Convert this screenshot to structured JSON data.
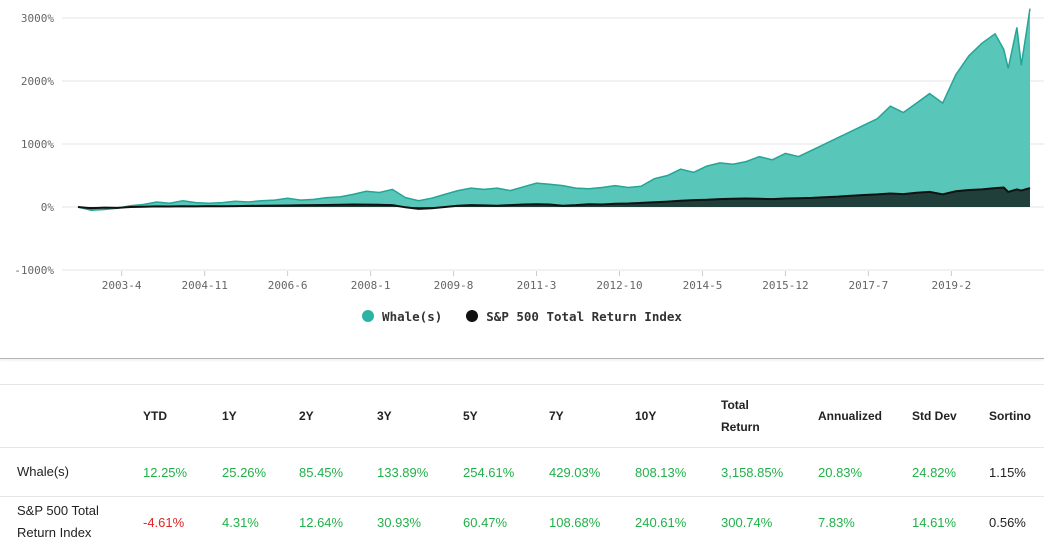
{
  "chart_data": {
    "type": "area",
    "title": "",
    "xlabel": "",
    "ylabel": "",
    "ylim": [
      -1000,
      3200
    ],
    "y_ticks": [
      "3000%",
      "2000%",
      "1000%",
      "0%",
      "-1000%"
    ],
    "y_tick_values": [
      3000,
      2000,
      1000,
      0,
      -1000
    ],
    "x_ticks": [
      "2003-4",
      "2004-11",
      "2006-6",
      "2008-1",
      "2009-8",
      "2011-3",
      "2012-10",
      "2014-5",
      "2015-12",
      "2017-7",
      "2019-2"
    ],
    "x_range": [
      "2002-6",
      "2020-8"
    ],
    "grid": "horizontal",
    "legend_position": "bottom-center",
    "series": [
      {
        "name": "Whale(s)",
        "color": "#24a596",
        "x": [
          "2002-6",
          "2002-9",
          "2002-12",
          "2003-3",
          "2003-6",
          "2003-9",
          "2003-12",
          "2004-3",
          "2004-6",
          "2004-9",
          "2004-12",
          "2005-3",
          "2005-6",
          "2005-9",
          "2005-12",
          "2006-3",
          "2006-6",
          "2006-9",
          "2006-12",
          "2007-3",
          "2007-6",
          "2007-9",
          "2007-12",
          "2008-3",
          "2008-6",
          "2008-9",
          "2008-12",
          "2009-3",
          "2009-6",
          "2009-9",
          "2009-12",
          "2010-3",
          "2010-6",
          "2010-9",
          "2010-12",
          "2011-3",
          "2011-6",
          "2011-9",
          "2011-12",
          "2012-3",
          "2012-6",
          "2012-9",
          "2012-12",
          "2013-3",
          "2013-6",
          "2013-9",
          "2013-12",
          "2014-3",
          "2014-6",
          "2014-9",
          "2014-12",
          "2015-3",
          "2015-6",
          "2015-9",
          "2015-12",
          "2016-3",
          "2016-6",
          "2016-9",
          "2016-12",
          "2017-3",
          "2017-6",
          "2017-9",
          "2017-12",
          "2018-3",
          "2018-6",
          "2018-9",
          "2018-12",
          "2019-3",
          "2019-6",
          "2019-9",
          "2019-12",
          "2020-2",
          "2020-3",
          "2020-5",
          "2020-6",
          "2020-8"
        ],
        "values": [
          0,
          -50,
          -40,
          -20,
          20,
          40,
          80,
          60,
          100,
          70,
          60,
          70,
          90,
          80,
          100,
          110,
          140,
          110,
          120,
          150,
          160,
          200,
          250,
          230,
          280,
          150,
          100,
          140,
          200,
          260,
          300,
          280,
          300,
          260,
          320,
          380,
          360,
          340,
          300,
          290,
          310,
          340,
          310,
          330,
          450,
          500,
          600,
          550,
          650,
          700,
          680,
          720,
          800,
          750,
          850,
          800,
          900,
          1000,
          1100,
          1200,
          1300,
          1400,
          1600,
          1500,
          1650,
          1800,
          1650,
          2100,
          2400,
          2600,
          2750,
          2500,
          2200,
          2850,
          2250,
          3150
        ]
      },
      {
        "name": "S&P 500 Total Return Index",
        "color": "#111111",
        "x": [
          "2002-6",
          "2002-9",
          "2002-12",
          "2003-3",
          "2003-6",
          "2003-9",
          "2003-12",
          "2004-3",
          "2004-6",
          "2004-9",
          "2004-12",
          "2005-3",
          "2005-6",
          "2005-9",
          "2005-12",
          "2006-3",
          "2006-6",
          "2006-9",
          "2006-12",
          "2007-3",
          "2007-6",
          "2007-9",
          "2007-12",
          "2008-3",
          "2008-6",
          "2008-9",
          "2008-12",
          "2009-3",
          "2009-6",
          "2009-9",
          "2009-12",
          "2010-3",
          "2010-6",
          "2010-9",
          "2010-12",
          "2011-3",
          "2011-6",
          "2011-9",
          "2011-12",
          "2012-3",
          "2012-6",
          "2012-9",
          "2012-12",
          "2013-3",
          "2013-6",
          "2013-9",
          "2013-12",
          "2014-3",
          "2014-6",
          "2014-9",
          "2014-12",
          "2015-3",
          "2015-6",
          "2015-9",
          "2015-12",
          "2016-3",
          "2016-6",
          "2016-9",
          "2016-12",
          "2017-3",
          "2017-6",
          "2017-9",
          "2017-12",
          "2018-3",
          "2018-6",
          "2018-9",
          "2018-12",
          "2019-3",
          "2019-6",
          "2019-9",
          "2019-12",
          "2020-2",
          "2020-3",
          "2020-5",
          "2020-6",
          "2020-8"
        ],
        "values": [
          0,
          -20,
          -10,
          -15,
          0,
          5,
          10,
          8,
          12,
          10,
          14,
          12,
          15,
          18,
          20,
          22,
          24,
          28,
          30,
          32,
          35,
          40,
          38,
          35,
          30,
          -5,
          -30,
          -20,
          0,
          20,
          30,
          25,
          20,
          30,
          40,
          45,
          40,
          20,
          30,
          45,
          40,
          50,
          55,
          65,
          75,
          85,
          100,
          110,
          115,
          125,
          130,
          135,
          130,
          125,
          135,
          140,
          145,
          155,
          165,
          180,
          190,
          200,
          215,
          205,
          225,
          240,
          200,
          250,
          270,
          280,
          300,
          310,
          240,
          280,
          260,
          300
        ]
      }
    ]
  },
  "table": {
    "headers": [
      "",
      "YTD",
      "1Y",
      "2Y",
      "3Y",
      "5Y",
      "7Y",
      "10Y",
      "Total Return",
      "Annualized",
      "Std Dev",
      "Sortino"
    ],
    "header_total_line1": "Total",
    "header_total_line2": "Return",
    "rows": [
      {
        "name": "Whale(s)",
        "ytd": "12.25%",
        "y1": "25.26%",
        "y2": "85.45%",
        "y3": "133.89%",
        "y5": "254.61%",
        "y7": "429.03%",
        "y10": "808.13%",
        "total": "3,158.85%",
        "annualized": "20.83%",
        "std_dev": "24.82%",
        "sortino": "1.15%"
      },
      {
        "name_line1": "S&P 500 Total",
        "name_line2": "Return Index",
        "ytd": "-4.61%",
        "y1": "4.31%",
        "y2": "12.64%",
        "y3": "30.93%",
        "y5": "60.47%",
        "y7": "108.68%",
        "y10": "240.61%",
        "total": "300.74%",
        "annualized": "7.83%",
        "std_dev": "14.61%",
        "sortino": "0.56%"
      }
    ]
  },
  "colors": {
    "positive": "#21b14a",
    "negative": "#e02424",
    "whale_fill": "#4fc3b5",
    "whale_line": "#24a596",
    "sp_fill": "#1f3b36",
    "sp_line": "#111111"
  }
}
